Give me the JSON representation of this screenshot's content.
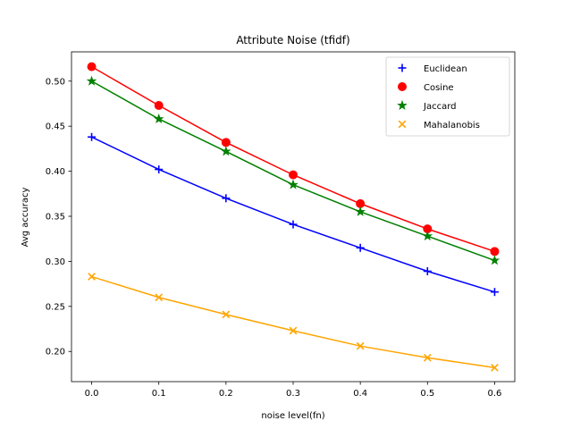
{
  "chart_data": {
    "type": "line",
    "title": "Attribute Noise (tfidf)",
    "xlabel": "noise level(fn)",
    "ylabel": "Avg accuracy",
    "x": [
      0.0,
      0.1,
      0.2,
      0.3,
      0.4,
      0.5,
      0.6
    ],
    "xticks": [
      "0.0",
      "0.1",
      "0.2",
      "0.3",
      "0.4",
      "0.5",
      "0.6"
    ],
    "yticks": [
      "0.20",
      "0.25",
      "0.30",
      "0.35",
      "0.40",
      "0.45",
      "0.50"
    ],
    "xlim": [
      -0.03,
      0.63
    ],
    "ylim": [
      0.1665,
      0.5325
    ],
    "grid": false,
    "legend_position": "top-right",
    "series": [
      {
        "name": "Euclidean",
        "color": "#0000ff",
        "marker": "plus",
        "values": [
          0.438,
          0.402,
          0.37,
          0.341,
          0.315,
          0.289,
          0.266
        ]
      },
      {
        "name": "Cosine",
        "color": "#ff0000",
        "marker": "circle",
        "values": [
          0.516,
          0.473,
          0.432,
          0.396,
          0.364,
          0.336,
          0.311
        ]
      },
      {
        "name": "Jaccard",
        "color": "#008000",
        "marker": "star",
        "values": [
          0.5,
          0.458,
          0.422,
          0.385,
          0.355,
          0.328,
          0.301
        ]
      },
      {
        "name": "Mahalanobis",
        "color": "#ffa500",
        "marker": "x",
        "values": [
          0.283,
          0.26,
          0.241,
          0.223,
          0.206,
          0.193,
          0.182
        ]
      }
    ]
  }
}
